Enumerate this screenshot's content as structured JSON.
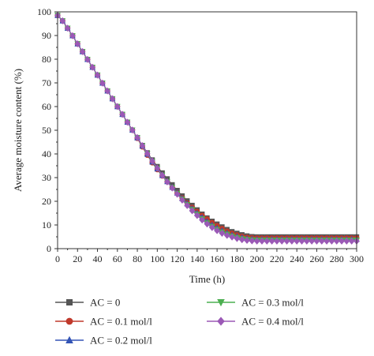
{
  "chart_data": {
    "type": "line",
    "title": "",
    "xlabel": "Time (h)",
    "ylabel": "Average moisture content (%)",
    "xlim": [
      0,
      300
    ],
    "ylim": [
      0,
      100
    ],
    "x_ticks": [
      0,
      20,
      40,
      60,
      80,
      100,
      120,
      140,
      160,
      180,
      200,
      220,
      240,
      260,
      280,
      300
    ],
    "y_ticks": [
      0,
      10,
      20,
      30,
      40,
      50,
      60,
      70,
      80,
      90,
      100
    ],
    "grid": false,
    "legend_position": "below",
    "x": [
      0,
      5,
      10,
      15,
      20,
      25,
      30,
      35,
      40,
      45,
      50,
      55,
      60,
      65,
      70,
      75,
      80,
      85,
      90,
      95,
      100,
      105,
      110,
      115,
      120,
      125,
      130,
      135,
      140,
      145,
      150,
      155,
      160,
      165,
      170,
      175,
      180,
      185,
      190,
      195,
      200,
      205,
      210,
      215,
      220,
      225,
      230,
      235,
      240,
      245,
      250,
      255,
      260,
      265,
      270,
      275,
      280,
      285,
      290,
      295,
      300
    ],
    "series": [
      {
        "name": "AC = 0",
        "color": "#555555",
        "marker": "square",
        "values": [
          98.5,
          96.2,
          93.1,
          89.9,
          86.5,
          83.2,
          79.9,
          76.6,
          73.3,
          69.9,
          66.6,
          63.3,
          60.0,
          56.7,
          53.4,
          50.1,
          46.9,
          43.6,
          40.5,
          37.5,
          34.7,
          32.0,
          29.5,
          27.0,
          24.6,
          22.3,
          20.2,
          18.3,
          16.4,
          14.6,
          13.0,
          11.6,
          10.4,
          9.2,
          8.1,
          7.2,
          6.5,
          5.9,
          5.4,
          5.1,
          5.0,
          5.0,
          5.0,
          5.0,
          5.0,
          5.0,
          5.0,
          5.0,
          5.0,
          5.0,
          5.0,
          5.0,
          5.0,
          5.0,
          5.0,
          5.0,
          5.0,
          5.0,
          5.0,
          5.0,
          5.0
        ]
      },
      {
        "name": "AC = 0.1 mol/l",
        "color": "#c0392b",
        "marker": "circle",
        "values": [
          98.5,
          96.2,
          93.1,
          89.9,
          86.5,
          83.2,
          79.9,
          76.6,
          73.3,
          69.9,
          66.6,
          63.3,
          60.0,
          56.7,
          53.4,
          50.1,
          46.6,
          43.0,
          39.5,
          36.3,
          33.4,
          30.7,
          28.2,
          25.8,
          23.5,
          21.4,
          19.3,
          17.4,
          15.7,
          14.0,
          12.5,
          11.0,
          9.7,
          8.5,
          7.4,
          6.5,
          5.8,
          5.2,
          4.8,
          4.6,
          4.5,
          4.5,
          4.5,
          4.5,
          4.5,
          4.5,
          4.5,
          4.5,
          4.5,
          4.5,
          4.5,
          4.5,
          4.5,
          4.5,
          4.5,
          4.5,
          4.5,
          4.5,
          4.5,
          4.5,
          4.5
        ]
      },
      {
        "name": "AC = 0.2 mol/l",
        "color": "#3354b5",
        "marker": "triangle-up",
        "values": [
          98.5,
          96.2,
          93.1,
          89.9,
          86.5,
          83.2,
          79.9,
          76.6,
          73.3,
          69.9,
          66.6,
          63.3,
          60.0,
          56.7,
          53.4,
          50.1,
          46.8,
          43.3,
          39.9,
          36.6,
          33.7,
          30.9,
          28.3,
          25.9,
          23.5,
          21.2,
          19.0,
          16.9,
          15.0,
          13.2,
          11.5,
          10.0,
          8.7,
          7.6,
          6.6,
          5.8,
          5.2,
          4.7,
          4.3,
          4.1,
          4.0,
          4.0,
          4.0,
          4.0,
          4.0,
          4.0,
          4.0,
          4.0,
          4.0,
          4.0,
          4.0,
          4.0,
          4.0,
          4.0,
          4.0,
          4.0,
          4.0,
          4.0,
          4.0,
          4.0,
          4.0
        ]
      },
      {
        "name": "AC = 0.3 mol/l",
        "color": "#4caf50",
        "marker": "triangle-down",
        "values": [
          98.5,
          96.2,
          93.1,
          89.9,
          86.5,
          83.2,
          79.9,
          76.6,
          73.3,
          69.9,
          66.6,
          63.3,
          60.0,
          56.7,
          53.4,
          50.1,
          46.8,
          43.4,
          40.1,
          36.9,
          33.9,
          31.0,
          28.3,
          25.8,
          23.3,
          20.9,
          18.6,
          16.5,
          14.5,
          12.6,
          10.9,
          9.4,
          8.1,
          7.0,
          6.1,
          5.3,
          4.7,
          4.2,
          3.9,
          3.7,
          3.6,
          3.6,
          3.6,
          3.6,
          3.6,
          3.6,
          3.6,
          3.6,
          3.6,
          3.6,
          3.6,
          3.6,
          3.6,
          3.6,
          3.6,
          3.6,
          3.6,
          3.6,
          3.6,
          3.6,
          3.6
        ]
      },
      {
        "name": "AC = 0.4 mol/l",
        "color": "#9b59b6",
        "marker": "diamond",
        "values": [
          98.5,
          96.2,
          93.1,
          89.9,
          86.5,
          83.2,
          79.9,
          76.6,
          73.3,
          69.9,
          66.6,
          63.3,
          60.0,
          56.7,
          53.4,
          50.1,
          46.9,
          43.5,
          40.2,
          37.0,
          34.0,
          31.0,
          28.2,
          25.6,
          23.0,
          20.5,
          18.2,
          16.0,
          14.0,
          12.1,
          10.4,
          8.9,
          7.6,
          6.5,
          5.6,
          4.9,
          4.3,
          3.8,
          3.5,
          3.3,
          3.2,
          3.2,
          3.2,
          3.2,
          3.2,
          3.2,
          3.2,
          3.2,
          3.2,
          3.2,
          3.2,
          3.2,
          3.2,
          3.2,
          3.2,
          3.2,
          3.2,
          3.2,
          3.2,
          3.2,
          3.2
        ]
      }
    ]
  }
}
